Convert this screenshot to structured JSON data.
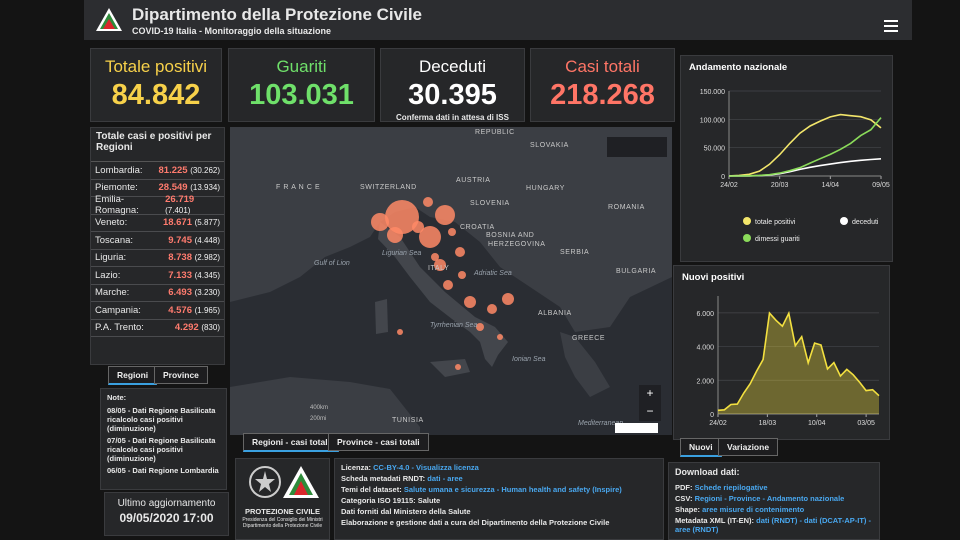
{
  "header": {
    "title": "Dipartimento della Protezione Civile",
    "subtitle": "COVID-19 Italia - Monitoraggio della situazione"
  },
  "stats": [
    {
      "label": "Totale positivi",
      "value": "84.842",
      "color": "#f7d14a"
    },
    {
      "label": "Guariti",
      "value": "103.031",
      "color": "#6fe06a"
    },
    {
      "label": "Deceduti",
      "value": "30.395",
      "note": "Conferma dati in attesa di ISS",
      "color": "#ffffff"
    },
    {
      "label": "Casi totali",
      "value": "218.268",
      "color": "#ff7566"
    }
  ],
  "regions": {
    "title": "Totale casi e positivi per Regioni",
    "rows": [
      {
        "name": "Lombardia:",
        "total": "81.225",
        "positive": "(30.262)"
      },
      {
        "name": "Piemonte:",
        "total": "28.549",
        "positive": "(13.934)"
      },
      {
        "name": "Emilia-Romagna:",
        "total": "26.719",
        "positive": "(7.401)"
      },
      {
        "name": "Veneto:",
        "total": "18.671",
        "positive": "(5.877)"
      },
      {
        "name": "Toscana:",
        "total": "9.745",
        "positive": "(4.448)"
      },
      {
        "name": "Liguria:",
        "total": "8.738",
        "positive": "(2.982)"
      },
      {
        "name": "Lazio:",
        "total": "7.133",
        "positive": "(4.345)"
      },
      {
        "name": "Marche:",
        "total": "6.493",
        "positive": "(3.230)"
      },
      {
        "name": "Campania:",
        "total": "4.576",
        "positive": "(1.965)"
      },
      {
        "name": "P.A. Trento:",
        "total": "4.292",
        "positive": "(830)"
      }
    ],
    "tabs": [
      "Regioni",
      "Province"
    ]
  },
  "notes": {
    "title": "Note:",
    "items": [
      "08/05 - Dati Regione Basilicata ricalcolo casi positivi (diminuzione)",
      "07/05 - Dati Regione Basilicata ricalcolo casi positivi (diminuzione)",
      "06/05 - Dati Regione Lombardia"
    ]
  },
  "update": {
    "label": "Ultimo aggiornamento",
    "value": "09/05/2020 17:00"
  },
  "map": {
    "labels": [
      "F R A N C E",
      "SWITZERLAND",
      "AUSTRIA",
      "SLOVENIA",
      "CROATIA",
      "HUNGARY",
      "ROMANIA",
      "BOSNIA AND",
      "HERZEGOVINA",
      "SERBIA",
      "BULGARIA",
      "ITALY",
      "ALBANIA",
      "GREECE",
      "TUNISIA",
      "SLOVAKIA",
      "REPUBLIC"
    ],
    "seas": [
      "Ligurian Sea",
      "Gulf of Lion",
      "Adriatic Sea",
      "Tyrrhenian Sea",
      "Ionian Sea",
      "Mediterranean"
    ],
    "scale": [
      "400km",
      "200mi"
    ],
    "tabs": [
      "Regioni - casi totali",
      "Province - casi totali"
    ]
  },
  "chart_data": [
    {
      "type": "line",
      "title": "Andamento nazionale",
      "x": [
        0,
        5,
        10,
        15,
        20,
        25,
        30,
        35,
        40,
        45,
        50,
        55,
        60,
        65,
        70,
        75
      ],
      "xlim": [
        0,
        75
      ],
      "xticks": [
        {
          "value": 0,
          "label": "24/02"
        },
        {
          "value": 25,
          "label": "20/03"
        },
        {
          "value": 50,
          "label": "14/04"
        },
        {
          "value": 75,
          "label": "09/05"
        }
      ],
      "ylim": [
        0,
        150000
      ],
      "yticks": [
        0,
        {
          "value": 50000,
          "label": "50.000"
        },
        {
          "value": 100000,
          "label": "100.000"
        },
        {
          "value": 150000,
          "label": "150.000"
        }
      ],
      "grid": true,
      "series": [
        {
          "name": "totale positivi",
          "color": "#f3e66b",
          "values": [
            200,
            1000,
            3000,
            8500,
            20600,
            37800,
            57500,
            75500,
            88300,
            96900,
            104300,
            108300,
            106500,
            104600,
            99000,
            84800
          ]
        },
        {
          "name": "deceduti",
          "color": "#ffffff",
          "values": [
            7,
            17,
            148,
            631,
            1809,
            4032,
            7503,
            11591,
            15362,
            18279,
            21067,
            23660,
            25969,
            27682,
            29079,
            30395
          ]
        },
        {
          "name": "dimessi guariti",
          "color": "#8bdb5a",
          "values": [
            1,
            46,
            414,
            1004,
            2335,
            5129,
            9362,
            14620,
            22837,
            30455,
            38092,
            47055,
            57576,
            71252,
            81654,
            103031
          ]
        }
      ]
    },
    {
      "type": "area",
      "title": "Nuovi positivi",
      "x": [
        0,
        3,
        6,
        9,
        12,
        15,
        18,
        21,
        24,
        27,
        30,
        33,
        36,
        39,
        42,
        45,
        48,
        51,
        54,
        57,
        60,
        63,
        66,
        69,
        72,
        75
      ],
      "xlim": [
        0,
        75
      ],
      "xticks": [
        {
          "value": 0,
          "label": "24/02"
        },
        {
          "value": 23,
          "label": "18/03"
        },
        {
          "value": 46,
          "label": "10/04"
        },
        {
          "value": 69,
          "label": "03/05"
        }
      ],
      "ylim": [
        0,
        7000
      ],
      "yticks": [
        0,
        {
          "value": 2000,
          "label": "2.000"
        },
        {
          "value": 4000,
          "label": "4.000"
        },
        {
          "value": 6000,
          "label": "6.000"
        }
      ],
      "grid": true,
      "color": "#f3e040",
      "values": [
        221,
        250,
        566,
        587,
        1247,
        1797,
        2547,
        3233,
        5986,
        5560,
        5210,
        5974,
        4053,
        4585,
        3039,
        4204,
        4092,
        2667,
        3047,
        2256,
        2646,
        2324,
        1872,
        1389,
        1444,
        1083
      ],
      "tabs": [
        "Nuovi",
        "Variazione"
      ]
    }
  ],
  "logo": {
    "name": "PROTEZIONE CIVILE",
    "subtitle": "Presidenza del Consiglio dei Ministri Dipartimento della Protezione Civile"
  },
  "info": {
    "lines": [
      {
        "label": "Licenza:",
        "link": "CC-BY-4.0 - Visualizza licenza"
      },
      {
        "label": "Scheda metadati RNDT:",
        "link": "dati - aree"
      },
      {
        "label": "Temi del dataset:",
        "link": "Salute umana e sicurezza - Human health and safety (Inspire)"
      },
      {
        "label": "Categoria ISO 19115: Salute"
      },
      {
        "label": "Dati forniti dal Ministero della Salute"
      },
      {
        "label": "Elaborazione e gestione dati a cura del Dipartimento della Protezione Civile"
      }
    ]
  },
  "download": {
    "title": "Download dati:",
    "items": [
      {
        "label": "PDF:",
        "link": "Schede riepilogative"
      },
      {
        "label": "CSV:",
        "link": "Regioni - Province - Andamento nazionale"
      },
      {
        "label": "Shape:",
        "link": "aree misure di contenimento"
      },
      {
        "label": "Metadata XML (IT-EN):",
        "link": "dati (RNDT) - dati (DCAT-AP-IT) - aree (RNDT)"
      }
    ]
  }
}
